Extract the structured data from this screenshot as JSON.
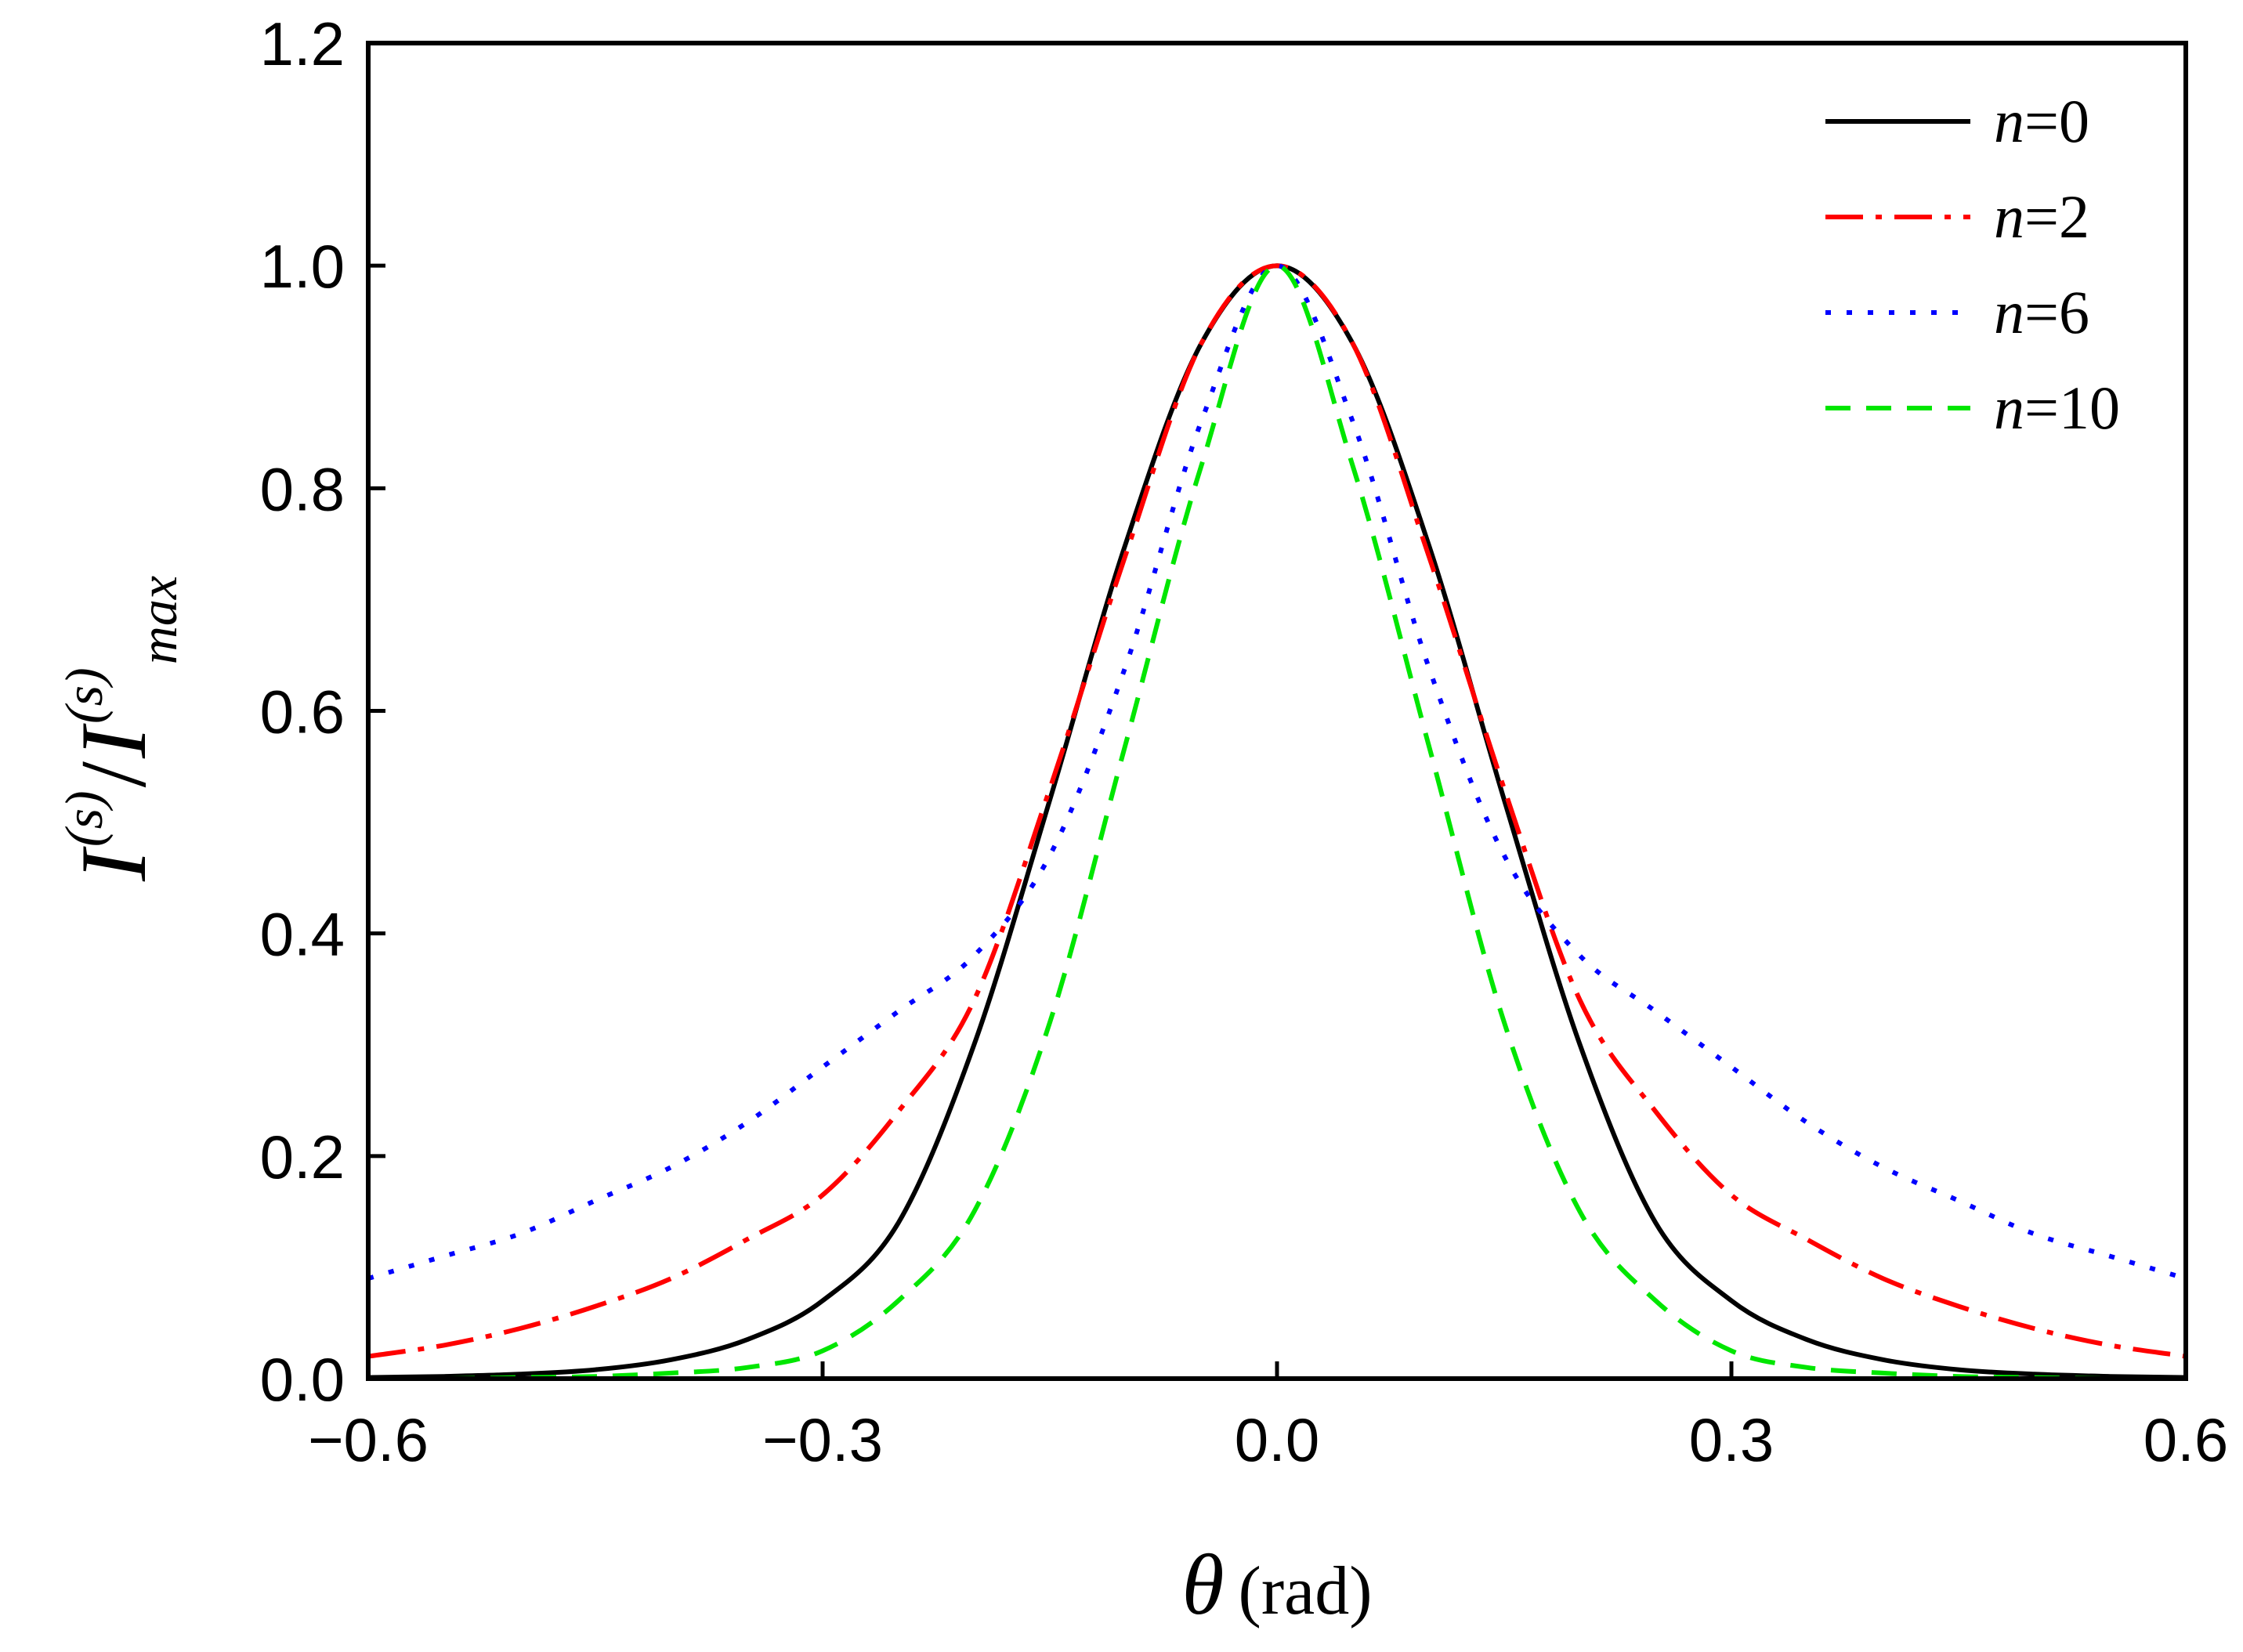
{
  "chart_data": {
    "type": "line",
    "title": "",
    "xlabel": {
      "symbol": "θ",
      "unit": "(rad)"
    },
    "ylabel": {
      "base": "I",
      "sup": "(s)",
      "sub": "max"
    },
    "xlim": [
      -0.6,
      0.6
    ],
    "ylim": [
      0.0,
      1.2
    ],
    "xticks": [
      -0.6,
      -0.3,
      0.0,
      0.3,
      0.6
    ],
    "xtick_labels": [
      "−0.6",
      "−0.3",
      "0.0",
      "0.3",
      "0.6"
    ],
    "yticks": [
      0.0,
      0.2,
      0.4,
      0.6,
      0.8,
      1.0,
      1.2
    ],
    "ytick_labels": [
      "0.0",
      "0.2",
      "0.4",
      "0.6",
      "0.8",
      "1.0",
      "1.2"
    ],
    "legend_position": "top-right",
    "x": [
      -0.6,
      -0.55,
      -0.5,
      -0.45,
      -0.4,
      -0.35,
      -0.3,
      -0.25,
      -0.2,
      -0.15,
      -0.1,
      -0.05,
      0.0,
      0.05,
      0.1,
      0.15,
      0.2,
      0.25,
      0.3,
      0.35,
      0.4,
      0.45,
      0.5,
      0.55,
      0.6
    ],
    "series": [
      {
        "name": "n=0",
        "n_var": "n",
        "n_val": "=0",
        "color": "#000000",
        "dash": "solid",
        "values": [
          0.001,
          0.002,
          0.004,
          0.008,
          0.017,
          0.035,
          0.07,
          0.14,
          0.3,
          0.52,
          0.75,
          0.93,
          1.0,
          0.93,
          0.75,
          0.52,
          0.3,
          0.14,
          0.07,
          0.035,
          0.017,
          0.008,
          0.004,
          0.002,
          0.001
        ]
      },
      {
        "name": "n=2",
        "n_var": "n",
        "n_val": "=2",
        "color": "#ff0000",
        "dash": "dashdot",
        "values": [
          0.02,
          0.03,
          0.045,
          0.065,
          0.09,
          0.125,
          0.165,
          0.24,
          0.34,
          0.53,
          0.74,
          0.93,
          1.0,
          0.93,
          0.74,
          0.53,
          0.34,
          0.24,
          0.165,
          0.125,
          0.09,
          0.065,
          0.045,
          0.03,
          0.02
        ]
      },
      {
        "name": "n=6",
        "n_var": "n",
        "n_val": "=6",
        "color": "#0000ff",
        "dash": "dotted",
        "values": [
          0.09,
          0.11,
          0.13,
          0.16,
          0.19,
          0.23,
          0.28,
          0.33,
          0.38,
          0.47,
          0.64,
          0.86,
          1.0,
          0.86,
          0.64,
          0.47,
          0.38,
          0.33,
          0.28,
          0.23,
          0.19,
          0.16,
          0.13,
          0.11,
          0.09
        ]
      },
      {
        "name": "n=10",
        "n_var": "n",
        "n_val": "=10",
        "color": "#00e600",
        "dash": "dashed",
        "values": [
          0.0,
          0.0,
          0.001,
          0.002,
          0.005,
          0.01,
          0.025,
          0.07,
          0.15,
          0.32,
          0.57,
          0.82,
          1.0,
          0.82,
          0.57,
          0.32,
          0.15,
          0.07,
          0.025,
          0.01,
          0.005,
          0.002,
          0.001,
          0.0,
          0.0
        ]
      }
    ]
  }
}
